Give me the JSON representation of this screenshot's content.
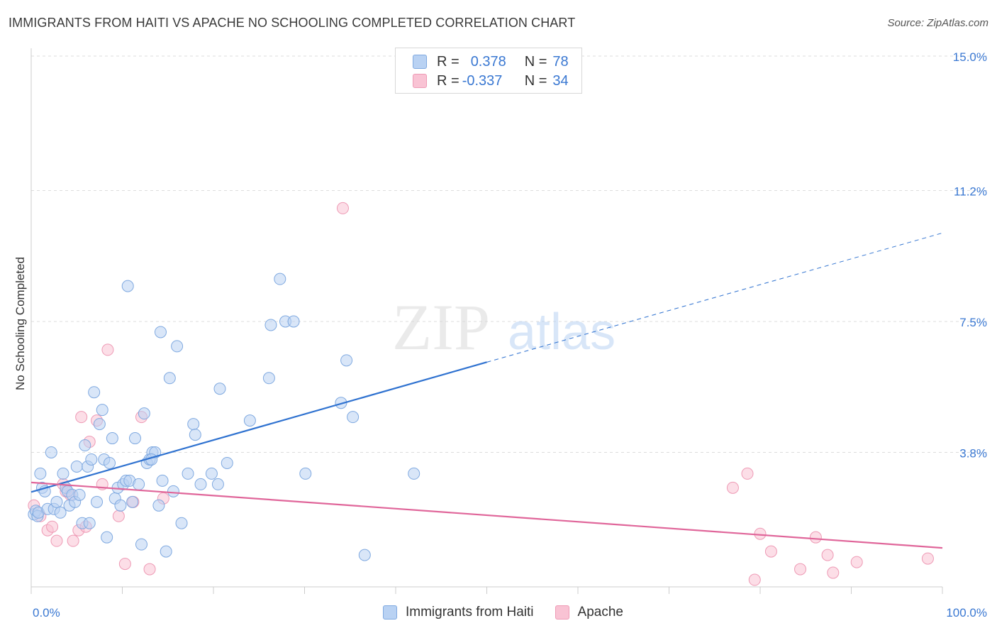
{
  "header": {
    "title": "IMMIGRANTS FROM HAITI VS APACHE NO SCHOOLING COMPLETED CORRELATION CHART",
    "source": "Source: ZipAtlas.com"
  },
  "legend": {
    "rows": [
      {
        "r_label": "R =",
        "r_value": "0.378",
        "n_label": "N =",
        "n_value": "78"
      },
      {
        "r_label": "R =",
        "r_value": "-0.337",
        "n_label": "N =",
        "n_value": "34"
      }
    ]
  },
  "colors": {
    "series1_fill": "#b9d2f3",
    "series1_stroke": "#7fa9e0",
    "series1_line": "#2f72d0",
    "series2_fill": "#f9c3d4",
    "series2_stroke": "#ee9ab5",
    "series2_line": "#e0669a",
    "grid": "#dddddd",
    "axis_text": "#3a78d2"
  },
  "watermark": {
    "part1": "ZIP",
    "part2": "atlas"
  },
  "chart_data": {
    "type": "scatter",
    "title": "IMMIGRANTS FROM HAITI VS APACHE NO SCHOOLING COMPLETED CORRELATION CHART",
    "xlabel": "",
    "ylabel": "No Schooling Completed",
    "xlim": [
      0,
      100
    ],
    "ylim": [
      0,
      15
    ],
    "x_tick_labels": [
      "0.0%",
      "100.0%"
    ],
    "y_ticks": [
      3.8,
      7.5,
      11.2,
      15.0
    ],
    "y_tick_labels": [
      "3.8%",
      "7.5%",
      "11.2%",
      "15.0%"
    ],
    "grid": true,
    "legend_position": "top-center",
    "series": [
      {
        "name": "Immigrants from Haiti",
        "color": "#7fa9e0",
        "R": 0.378,
        "N": 78,
        "trend": {
          "x0": 0,
          "y0": 2.68,
          "x1": 50,
          "y1": 6.35,
          "dashed_to_x": 100,
          "dashed_to_y": 10.0
        },
        "points": [
          [
            0.3,
            2.05
          ],
          [
            0.5,
            2.15
          ],
          [
            0.7,
            2.0
          ],
          [
            0.8,
            2.1
          ],
          [
            1.0,
            3.2
          ],
          [
            1.2,
            2.8
          ],
          [
            1.5,
            2.7
          ],
          [
            1.8,
            2.2
          ],
          [
            2.2,
            3.8
          ],
          [
            2.5,
            2.2
          ],
          [
            2.8,
            2.4
          ],
          [
            3.2,
            2.1
          ],
          [
            3.5,
            3.2
          ],
          [
            3.8,
            2.8
          ],
          [
            4.0,
            2.7
          ],
          [
            4.2,
            2.3
          ],
          [
            4.5,
            2.6
          ],
          [
            4.8,
            2.4
          ],
          [
            5.0,
            3.4
          ],
          [
            5.3,
            2.6
          ],
          [
            5.6,
            1.8
          ],
          [
            5.9,
            4.0
          ],
          [
            6.2,
            3.4
          ],
          [
            6.4,
            1.8
          ],
          [
            6.6,
            3.6
          ],
          [
            6.9,
            5.5
          ],
          [
            7.2,
            2.4
          ],
          [
            7.5,
            4.6
          ],
          [
            7.8,
            5.0
          ],
          [
            8.0,
            3.6
          ],
          [
            8.3,
            1.4
          ],
          [
            8.6,
            3.5
          ],
          [
            8.9,
            4.2
          ],
          [
            9.2,
            2.5
          ],
          [
            9.5,
            2.8
          ],
          [
            9.8,
            2.3
          ],
          [
            10.1,
            2.9
          ],
          [
            10.4,
            3.0
          ],
          [
            10.8,
            3.0
          ],
          [
            11.1,
            2.4
          ],
          [
            11.4,
            4.2
          ],
          [
            11.8,
            2.9
          ],
          [
            12.1,
            1.2
          ],
          [
            12.4,
            4.9
          ],
          [
            12.7,
            3.5
          ],
          [
            13.0,
            3.6
          ],
          [
            13.3,
            3.8
          ],
          [
            13.6,
            3.8
          ],
          [
            14.0,
            2.3
          ],
          [
            14.4,
            3.0
          ],
          [
            14.8,
            1.0
          ],
          [
            15.2,
            5.9
          ],
          [
            15.6,
            2.7
          ],
          [
            16.0,
            6.8
          ],
          [
            16.5,
            1.8
          ],
          [
            17.2,
            3.2
          ],
          [
            17.8,
            4.6
          ],
          [
            18.0,
            4.3
          ],
          [
            18.6,
            2.9
          ],
          [
            19.8,
            3.2
          ],
          [
            20.5,
            2.9
          ],
          [
            21.5,
            3.5
          ],
          [
            24.0,
            4.7
          ],
          [
            26.3,
            7.4
          ],
          [
            27.3,
            8.7
          ],
          [
            27.9,
            7.5
          ],
          [
            28.8,
            7.5
          ],
          [
            34.0,
            5.2
          ],
          [
            35.3,
            4.8
          ],
          [
            36.6,
            0.9
          ],
          [
            42.0,
            3.2
          ],
          [
            13.2,
            3.6
          ],
          [
            10.6,
            8.5
          ],
          [
            14.2,
            7.2
          ],
          [
            20.7,
            5.6
          ],
          [
            26.1,
            5.9
          ],
          [
            30.1,
            3.2
          ],
          [
            34.6,
            6.4
          ]
        ]
      },
      {
        "name": "Apache",
        "color": "#ee9ab5",
        "R": -0.337,
        "N": 34,
        "trend": {
          "x0": 0,
          "y0": 2.95,
          "x1": 100,
          "y1": 1.1
        },
        "points": [
          [
            0.3,
            2.3
          ],
          [
            1.0,
            2.0
          ],
          [
            1.8,
            1.6
          ],
          [
            2.3,
            1.7
          ],
          [
            2.8,
            1.3
          ],
          [
            3.5,
            2.9
          ],
          [
            3.8,
            2.7
          ],
          [
            4.3,
            2.6
          ],
          [
            4.6,
            1.3
          ],
          [
            5.2,
            1.6
          ],
          [
            5.5,
            4.8
          ],
          [
            6.0,
            1.7
          ],
          [
            6.4,
            4.1
          ],
          [
            7.2,
            4.7
          ],
          [
            7.8,
            2.9
          ],
          [
            8.4,
            6.7
          ],
          [
            9.6,
            2.0
          ],
          [
            10.3,
            0.65
          ],
          [
            11.2,
            2.4
          ],
          [
            12.1,
            4.8
          ],
          [
            13.0,
            0.5
          ],
          [
            14.5,
            2.5
          ],
          [
            34.2,
            10.7
          ],
          [
            77.0,
            2.8
          ],
          [
            78.6,
            3.2
          ],
          [
            80.0,
            1.5
          ],
          [
            81.2,
            1.0
          ],
          [
            84.4,
            0.5
          ],
          [
            86.1,
            1.4
          ],
          [
            87.4,
            0.9
          ],
          [
            88.0,
            0.4
          ],
          [
            90.6,
            0.7
          ],
          [
            98.4,
            0.8
          ],
          [
            79.4,
            0.2
          ]
        ]
      }
    ]
  }
}
